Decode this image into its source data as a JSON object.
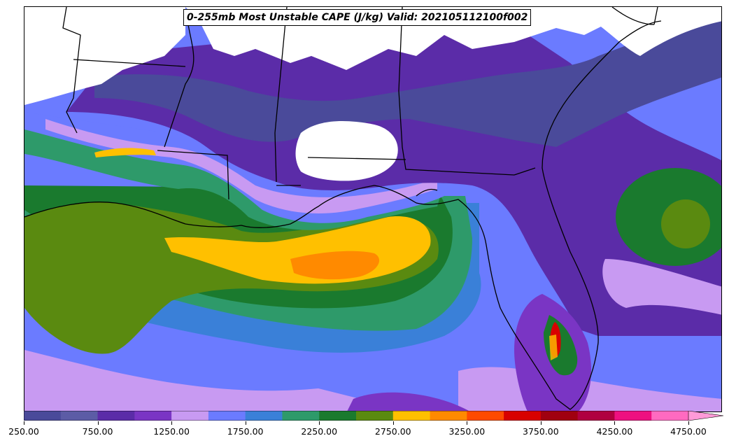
{
  "title": "0-255mb Most Unstable CAPE (J/kg) Valid: 202105112100f002",
  "colorbar": {
    "levels": [
      250,
      500,
      750,
      1000,
      1250,
      1500,
      1750,
      2000,
      2250,
      2500,
      2750,
      3000,
      3250,
      3500,
      3750,
      4000,
      4250,
      4500,
      4750
    ],
    "colors": [
      "#4a4a9a",
      "#5c5ca6",
      "#5b2ca8",
      "#7a35c4",
      "#c89af2",
      "#6b7bff",
      "#3a80d8",
      "#2e9a6a",
      "#1a7a2e",
      "#5a8a10",
      "#ffc000",
      "#ff8a00",
      "#ff4a00",
      "#d80000",
      "#a00010",
      "#b00040",
      "#ee1080",
      "#ff6ac0"
    ],
    "extend_color": "#ff9ad8",
    "tick_labels": [
      "250.00",
      "750.00",
      "1250.00",
      "1750.00",
      "2250.00",
      "2750.00",
      "3250.00",
      "3750.00",
      "4250.00",
      "4750.00"
    ]
  },
  "legend_colors": {
    "ocean_base": "#6b7bff",
    "land_base": "#5b2ca8",
    "no_data": "#ffffff",
    "coast": "#000000"
  }
}
